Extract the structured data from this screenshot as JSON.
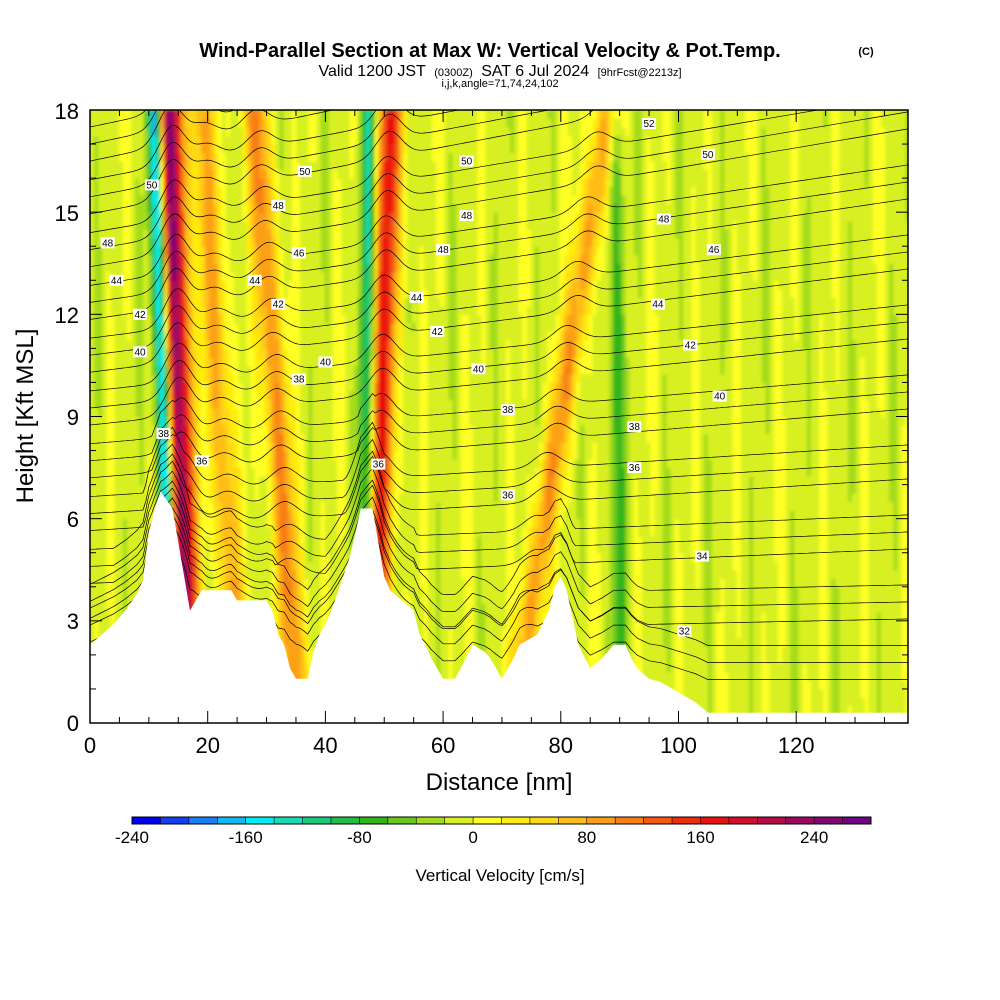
{
  "title": {
    "main": "Wind-Parallel Section at Max W: Vertical Velocity & Pot.Temp.",
    "copyright": "(C)",
    "valid_a": "Valid 1200 JST",
    "valid_utc": "(0300Z)",
    "valid_b": "SAT 6 Jul 2024",
    "forecast": "[9hrFcst@2213z]",
    "indices": "i,j,k,angle=71,74,24,102"
  },
  "chart_data": {
    "type": "heatmap",
    "xlabel": "Distance [nm]",
    "ylabel": "Height [Kft MSL]",
    "xlim": [
      0,
      139
    ],
    "ylim": [
      0,
      18
    ],
    "x_ticks": [
      "0",
      "20",
      "40",
      "60",
      "80",
      "100",
      "120"
    ],
    "y_ticks": [
      "0",
      "3",
      "6",
      "9",
      "12",
      "15",
      "18"
    ],
    "colorbar": {
      "title": "Vertical Velocity [cm/s]",
      "range": [
        -240,
        280
      ],
      "tick_labels": [
        "-240",
        "-160",
        "-80",
        "0",
        "80",
        "160",
        "240"
      ],
      "colors": [
        "#0000ee",
        "#1040f0",
        "#1c7ef4",
        "#12b8f0",
        "#00ecee",
        "#14dcb4",
        "#18cc7c",
        "#28bc46",
        "#30b41a",
        "#68c820",
        "#a4dc1c",
        "#d8f020",
        "#ffff28",
        "#ffec10",
        "#ffd814",
        "#ffbe18",
        "#fca018",
        "#f87e18",
        "#f45814",
        "#ee2c10",
        "#ea1010",
        "#d20e2c",
        "#b80c48",
        "#9c0860",
        "#820672",
        "#6c0482"
      ]
    },
    "terrain_kft": [
      [
        0,
        2.3
      ],
      [
        2,
        2.6
      ],
      [
        4,
        2.9
      ],
      [
        6,
        3.3
      ],
      [
        8,
        3.8
      ],
      [
        9,
        4.2
      ],
      [
        10,
        5.6
      ],
      [
        11,
        6.3
      ],
      [
        12,
        6.8
      ],
      [
        14,
        6.3
      ],
      [
        15,
        5.3
      ],
      [
        16,
        4.3
      ],
      [
        17,
        3.3
      ],
      [
        18,
        3.6
      ],
      [
        19,
        3.9
      ],
      [
        24,
        3.9
      ],
      [
        25,
        3.6
      ],
      [
        30,
        3.6
      ],
      [
        31,
        3.3
      ],
      [
        32,
        2.6
      ],
      [
        33,
        2.3
      ],
      [
        34,
        1.6
      ],
      [
        35,
        1.3
      ],
      [
        37,
        1.3
      ],
      [
        38,
        2.1
      ],
      [
        39,
        2.6
      ],
      [
        40,
        2.9
      ],
      [
        41,
        3.3
      ],
      [
        42,
        3.8
      ],
      [
        43,
        4.3
      ],
      [
        44,
        4.8
      ],
      [
        45,
        5.5
      ],
      [
        46,
        6.3
      ],
      [
        48,
        6.3
      ],
      [
        49,
        5.3
      ],
      [
        50,
        4.3
      ],
      [
        51,
        3.9
      ],
      [
        53,
        3.6
      ],
      [
        55,
        3.3
      ],
      [
        56,
        2.6
      ],
      [
        57,
        2.3
      ],
      [
        58,
        1.9
      ],
      [
        59,
        1.6
      ],
      [
        60,
        1.3
      ],
      [
        62,
        1.3
      ],
      [
        63,
        1.6
      ],
      [
        65,
        2.3
      ],
      [
        67,
        2.1
      ],
      [
        68,
        1.9
      ],
      [
        69,
        1.6
      ],
      [
        70,
        1.3
      ],
      [
        71,
        1.6
      ],
      [
        72,
        1.9
      ],
      [
        73,
        2.3
      ],
      [
        76,
        2.6
      ],
      [
        78,
        3.3
      ],
      [
        79,
        4.0
      ],
      [
        80,
        4.3
      ],
      [
        81,
        3.9
      ],
      [
        82,
        3.1
      ],
      [
        83,
        2.3
      ],
      [
        85,
        1.6
      ],
      [
        87,
        1.9
      ],
      [
        88,
        2.1
      ],
      [
        89,
        2.3
      ],
      [
        91,
        2.3
      ],
      [
        92,
        1.9
      ],
      [
        93,
        1.6
      ],
      [
        95,
        1.3
      ],
      [
        97,
        1.2
      ],
      [
        99,
        1.0
      ],
      [
        101,
        0.8
      ],
      [
        103,
        0.6
      ],
      [
        105,
        0.3
      ],
      [
        139,
        0.3
      ]
    ],
    "updrafts": [
      {
        "x_base": 16,
        "x_top": 13.5,
        "peak_cm_s": 250
      },
      {
        "x_base": 24,
        "x_top": 19,
        "peak_cm_s": 90
      },
      {
        "x_base": 35,
        "x_top": 28,
        "peak_cm_s": 110
      },
      {
        "x_base": 49,
        "x_top": 51,
        "peak_cm_s": 170
      },
      {
        "x_base": 74,
        "x_top": 88,
        "peak_cm_s": 100
      }
    ],
    "downdrafts": [
      {
        "x_base": 13,
        "x_top": 11,
        "peak_cm_s": -200
      },
      {
        "x_base": 47,
        "x_top": 47.5,
        "peak_cm_s": -120
      },
      {
        "x_base": 90,
        "x_top": 89,
        "peak_cm_s": -60
      }
    ],
    "isentrope_levels": [
      32,
      34,
      36,
      38,
      40,
      42,
      44,
      46,
      48,
      50,
      52
    ],
    "contour_labels": [
      {
        "text": "50",
        "x": 10.5,
        "y": 15.8
      },
      {
        "text": "48",
        "x": 3,
        "y": 14.1
      },
      {
        "text": "44",
        "x": 4.5,
        "y": 13.0
      },
      {
        "text": "42",
        "x": 8.5,
        "y": 12.0
      },
      {
        "text": "40",
        "x": 8.5,
        "y": 10.9
      },
      {
        "text": "38",
        "x": 12.5,
        "y": 8.5
      },
      {
        "text": "36",
        "x": 19,
        "y": 7.7
      },
      {
        "text": "50",
        "x": 36.5,
        "y": 16.2
      },
      {
        "text": "48",
        "x": 32,
        "y": 15.2
      },
      {
        "text": "46",
        "x": 35.5,
        "y": 13.8
      },
      {
        "text": "44",
        "x": 28,
        "y": 13.0
      },
      {
        "text": "42",
        "x": 32,
        "y": 12.3
      },
      {
        "text": "40",
        "x": 40,
        "y": 10.6
      },
      {
        "text": "38",
        "x": 35.5,
        "y": 10.1
      },
      {
        "text": "36",
        "x": 49,
        "y": 7.6
      },
      {
        "text": "50",
        "x": 64,
        "y": 16.5
      },
      {
        "text": "48",
        "x": 64,
        "y": 14.9
      },
      {
        "text": "48",
        "x": 60,
        "y": 13.9
      },
      {
        "text": "44",
        "x": 55.5,
        "y": 12.5
      },
      {
        "text": "42",
        "x": 59,
        "y": 11.5
      },
      {
        "text": "40",
        "x": 66,
        "y": 10.4
      },
      {
        "text": "38",
        "x": 71,
        "y": 9.2
      },
      {
        "text": "36",
        "x": 71,
        "y": 6.7
      },
      {
        "text": "52",
        "x": 95,
        "y": 17.6
      },
      {
        "text": "50",
        "x": 105,
        "y": 16.7
      },
      {
        "text": "48",
        "x": 97.5,
        "y": 14.8
      },
      {
        "text": "46",
        "x": 106,
        "y": 13.9
      },
      {
        "text": "44",
        "x": 96.5,
        "y": 12.3
      },
      {
        "text": "42",
        "x": 102,
        "y": 11.1
      },
      {
        "text": "40",
        "x": 107,
        "y": 9.6
      },
      {
        "text": "38",
        "x": 92.5,
        "y": 8.7
      },
      {
        "text": "36",
        "x": 92.5,
        "y": 7.5
      },
      {
        "text": "34",
        "x": 104,
        "y": 4.9
      },
      {
        "text": "32",
        "x": 101,
        "y": 2.7
      }
    ]
  }
}
